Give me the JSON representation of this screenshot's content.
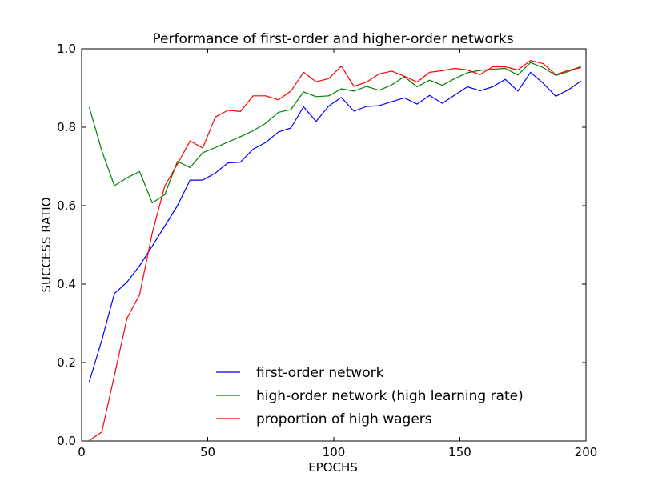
{
  "chart_data": {
    "type": "line",
    "title": "Performance of first-order and higher-order networks",
    "xlabel": "EPOCHS",
    "ylabel": "SUCCESS RATIO",
    "xlim": [
      0,
      200
    ],
    "ylim": [
      0.0,
      1.0
    ],
    "xticks": [
      0,
      50,
      100,
      150,
      200
    ],
    "xtick_labels": [
      "0",
      "50",
      "100",
      "150",
      "200"
    ],
    "yticks": [
      0.0,
      0.2,
      0.4,
      0.6,
      0.8,
      1.0
    ],
    "ytick_labels": [
      "0.0",
      "0.2",
      "0.4",
      "0.6",
      "0.8",
      "1.0"
    ],
    "grid": false,
    "legend_position": "lower-right",
    "x": [
      3,
      8,
      13,
      18,
      23,
      28,
      33,
      38,
      43,
      48,
      53,
      58,
      63,
      68,
      73,
      78,
      83,
      88,
      93,
      98,
      103,
      108,
      113,
      118,
      123,
      128,
      133,
      138,
      143,
      148,
      153,
      158,
      163,
      168,
      173,
      178,
      183,
      188,
      193,
      198
    ],
    "series": [
      {
        "name": "first-order network",
        "color": "#0000ff",
        "values": [
          0.151,
          0.257,
          0.376,
          0.405,
          0.447,
          0.497,
          0.548,
          0.6,
          0.665,
          0.665,
          0.683,
          0.709,
          0.711,
          0.744,
          0.761,
          0.788,
          0.798,
          0.852,
          0.815,
          0.854,
          0.876,
          0.841,
          0.853,
          0.855,
          0.865,
          0.875,
          0.859,
          0.881,
          0.861,
          0.882,
          0.903,
          0.893,
          0.903,
          0.922,
          0.892,
          0.94,
          0.912,
          0.879,
          0.895,
          0.918
        ]
      },
      {
        "name": "high-order network (high learning rate)",
        "color": "#008000",
        "values": [
          0.851,
          0.74,
          0.651,
          0.671,
          0.687,
          0.607,
          0.628,
          0.713,
          0.697,
          0.735,
          0.748,
          0.762,
          0.776,
          0.791,
          0.81,
          0.838,
          0.845,
          0.89,
          0.878,
          0.88,
          0.898,
          0.892,
          0.904,
          0.894,
          0.908,
          0.929,
          0.903,
          0.92,
          0.907,
          0.924,
          0.939,
          0.945,
          0.948,
          0.95,
          0.933,
          0.965,
          0.952,
          0.932,
          0.942,
          0.955
        ]
      },
      {
        "name": "proportion of high wagers",
        "color": "#ff0000",
        "values": [
          0.001,
          0.023,
          0.167,
          0.313,
          0.373,
          0.53,
          0.65,
          0.706,
          0.765,
          0.747,
          0.826,
          0.843,
          0.84,
          0.88,
          0.88,
          0.87,
          0.892,
          0.94,
          0.916,
          0.924,
          0.956,
          0.904,
          0.915,
          0.936,
          0.943,
          0.93,
          0.915,
          0.94,
          0.944,
          0.95,
          0.946,
          0.934,
          0.954,
          0.954,
          0.946,
          0.97,
          0.962,
          0.934,
          0.945,
          0.952
        ]
      }
    ]
  }
}
